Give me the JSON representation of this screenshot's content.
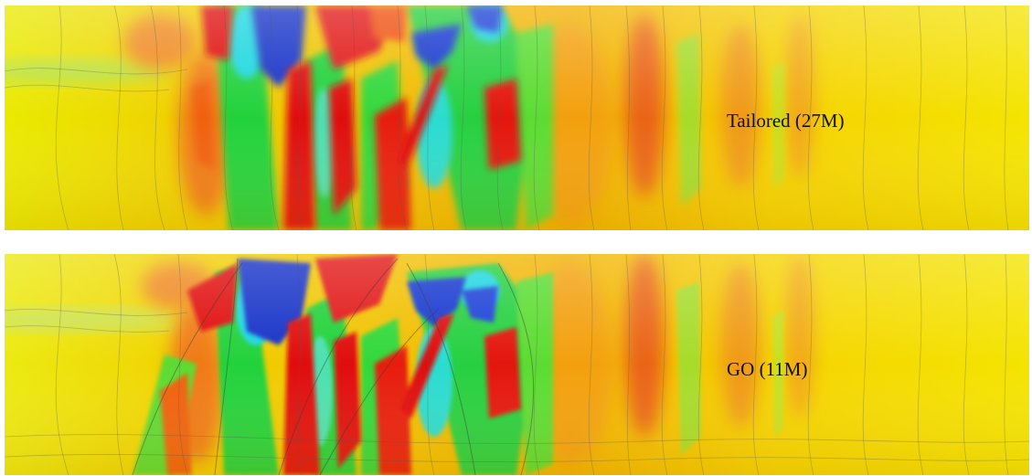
{
  "panels": [
    {
      "label": "Tailored (27M)"
    },
    {
      "label": "GO (11M)"
    }
  ],
  "colors": {
    "background": "#ffffff",
    "base_yellow": "#f5e000",
    "orange": "#f07a14",
    "red": "#e01010",
    "green": "#22d23a",
    "cyan": "#1ed7e0",
    "blue": "#1230c8",
    "contour": "#5a5a5a"
  }
}
